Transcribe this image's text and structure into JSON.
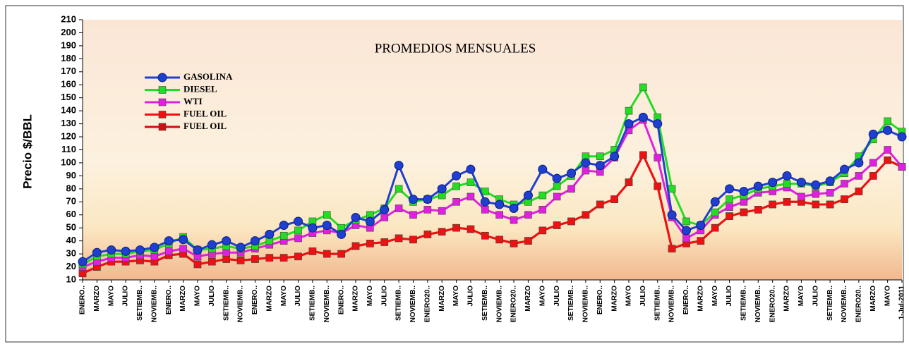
{
  "chart_data": {
    "type": "line",
    "title": "PROMEDIOS MENSUALES",
    "y_label": "Precio $/BBL",
    "categories": [
      "ENERO..",
      "MARZO",
      "MAYO",
      "JULIO",
      "SETIEMB..",
      "NOVIEMB..",
      "ENERO..",
      "MARZO",
      "MAYO",
      "JULIO",
      "SETIEMB..",
      "NOVIEMB..",
      "ENERO..",
      "MARZO",
      "MAYO",
      "JULIO",
      "SETIEMB..",
      "NOVIEMB..",
      "ENERO..",
      "MARZO",
      "MAYO",
      "JULIO",
      "SETIEMB..",
      "NOVIEMB..",
      "ENERO20..",
      "MARZO",
      "MAYO",
      "JULIO",
      "SETIEMB..",
      "NOVIEMB..",
      "ENERO20..",
      "MARZO",
      "MAYO",
      "JULIO",
      "SETIEMB..",
      "NOVIEMB..",
      "ENERO..",
      "MARZO",
      "MAYO",
      "JULIO",
      "SETIEMB..",
      "NOVIEMB..",
      "ENERO..",
      "MARZO",
      "MAYO",
      "JULIO",
      "SETIEMB..",
      "NOVIEMB..",
      "ENERO20..",
      "MARZO",
      "MAYO",
      "JULIO",
      "SETIEMB..",
      "NOVIEMB..",
      "ENERO20..",
      "MARZO",
      "MAYO",
      "1-Jul-2011"
    ],
    "series": [
      {
        "name": "GASOLINA",
        "color": "#1f3fd0",
        "marker": "circle",
        "values": [
          24,
          31,
          33,
          32,
          33,
          35,
          40,
          41,
          33,
          37,
          40,
          35,
          40,
          45,
          52,
          55,
          50,
          52,
          45,
          58,
          55,
          64,
          98,
          72,
          72,
          80,
          90,
          95,
          70,
          68,
          65,
          75,
          95,
          88,
          92,
          100,
          98,
          105,
          130,
          135,
          130,
          60,
          48,
          52,
          70,
          80,
          78,
          82,
          85,
          90,
          85,
          83,
          86,
          95,
          100,
          122,
          125,
          120
        ]
      },
      {
        "name": "DIESEL",
        "color": "#22dd22",
        "marker": "square",
        "values": [
          22,
          28,
          30,
          30,
          32,
          33,
          38,
          43,
          33,
          34,
          36,
          34,
          36,
          40,
          44,
          48,
          55,
          60,
          50,
          56,
          60,
          65,
          80,
          70,
          72,
          75,
          82,
          85,
          78,
          72,
          68,
          70,
          75,
          82,
          90,
          105,
          105,
          110,
          140,
          158,
          135,
          80,
          55,
          52,
          62,
          72,
          75,
          80,
          82,
          84,
          84,
          82,
          85,
          92,
          105,
          118,
          132,
          124
        ]
      },
      {
        "name": "WTI",
        "color": "#e020e0",
        "marker": "square",
        "values": [
          20,
          24,
          27,
          27,
          29,
          28,
          32,
          34,
          28,
          30,
          31,
          31,
          34,
          37,
          40,
          42,
          46,
          48,
          46,
          52,
          50,
          58,
          65,
          60,
          64,
          63,
          70,
          74,
          64,
          60,
          56,
          60,
          64,
          74,
          80,
          94,
          93,
          104,
          125,
          133,
          104,
          58,
          42,
          48,
          60,
          66,
          70,
          77,
          78,
          81,
          74,
          76,
          77,
          84,
          90,
          100,
          110,
          97
        ]
      },
      {
        "name": "FUEL OIL",
        "color": "#ee1111",
        "marker": "square",
        "values": [
          15,
          20,
          24,
          24,
          25,
          24,
          29,
          30,
          22,
          24,
          26,
          25,
          26,
          27,
          27,
          28,
          32,
          30,
          30,
          36,
          38,
          39,
          42,
          41,
          45,
          47,
          50,
          49,
          44,
          41,
          38,
          40,
          48,
          52,
          55,
          60,
          68,
          72,
          85,
          106,
          82,
          34,
          38,
          40,
          50,
          59,
          62,
          64,
          68,
          70,
          70,
          68,
          68,
          72,
          78,
          90,
          102,
          97
        ]
      },
      {
        "name": "FUEL OIL",
        "color": "#cc1111",
        "marker": "square",
        "values": [
          15,
          20,
          24,
          24,
          25,
          24,
          29,
          30,
          22,
          24,
          26,
          25,
          26,
          27,
          27,
          28,
          32,
          30,
          30,
          36,
          38,
          39,
          42,
          41,
          45,
          47,
          50,
          49,
          44,
          41,
          38,
          40,
          48,
          52,
          55,
          60,
          68,
          72,
          85,
          106,
          82,
          34,
          38,
          40,
          50,
          59,
          62,
          64,
          68,
          70,
          70,
          68,
          68,
          72,
          78,
          90,
          102,
          97
        ]
      }
    ],
    "ylim": [
      10,
      210
    ],
    "yticks": [
      10,
      20,
      30,
      40,
      50,
      60,
      70,
      80,
      90,
      100,
      110,
      120,
      130,
      140,
      150,
      160,
      170,
      180,
      190,
      200,
      210
    ]
  }
}
